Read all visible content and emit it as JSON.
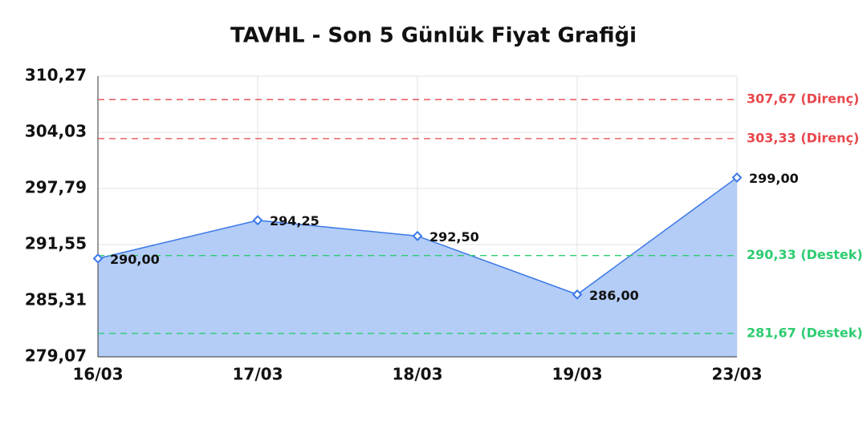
{
  "chart_data": {
    "type": "area",
    "title": "TAVHL - Son 5 Günlük Fiyat Grafiği",
    "categories": [
      "16/03",
      "17/03",
      "18/03",
      "19/03",
      "23/03"
    ],
    "values": [
      290.0,
      294.25,
      292.5,
      286.0,
      299.0
    ],
    "value_labels": [
      "290,00",
      "294,25",
      "292,50",
      "286,00",
      "299,00"
    ],
    "color": "#3b78e7",
    "fill_color": "#b3cdf7",
    "ylim": [
      279.07,
      310.27
    ],
    "yticks": [
      {
        "value": 279.07,
        "label": "279,07"
      },
      {
        "value": 285.31,
        "label": "285,31"
      },
      {
        "value": 291.55,
        "label": "291,55"
      },
      {
        "value": 297.79,
        "label": "297,79"
      },
      {
        "value": 304.03,
        "label": "304,03"
      },
      {
        "value": 310.27,
        "label": "310,27"
      }
    ],
    "grid": true,
    "reference_lines": [
      {
        "value": 307.67,
        "label": "307,67 (Direnç)",
        "color": "#e8474c"
      },
      {
        "value": 303.33,
        "label": "303,33 (Direnç)",
        "color": "#e8474c"
      },
      {
        "value": 290.33,
        "label": "290,33 (Destek)",
        "color": "#2ecc71"
      },
      {
        "value": 281.67,
        "label": "281,67 (Destek)",
        "color": "#2ecc71"
      }
    ]
  }
}
